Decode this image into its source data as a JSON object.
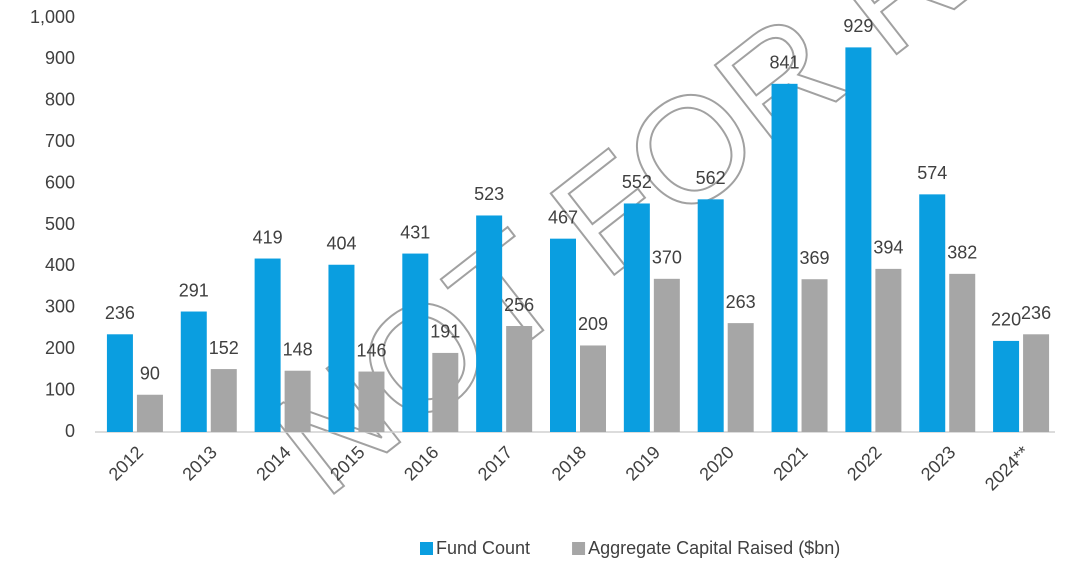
{
  "chart_data": {
    "type": "bar",
    "categories": [
      "2012",
      "2013",
      "2014",
      "2015",
      "2016",
      "2017",
      "2018",
      "2019",
      "2020",
      "2021",
      "2022",
      "2023",
      "2024**"
    ],
    "series": [
      {
        "name": "Fund Count",
        "color": "#0a9ee0",
        "values": [
          236,
          291,
          419,
          404,
          431,
          523,
          467,
          552,
          562,
          841,
          929,
          574,
          220
        ]
      },
      {
        "name": "Aggregate Capital Raised ($bn)",
        "color": "#a6a6a6",
        "values": [
          90,
          152,
          148,
          146,
          191,
          256,
          209,
          370,
          263,
          369,
          394,
          382,
          236
        ]
      }
    ],
    "ylim": [
      0,
      1000
    ],
    "yticks": [
      0,
      100,
      200,
      300,
      400,
      500,
      600,
      700,
      800,
      900,
      {
        "value": 1000,
        "label": "1,000"
      }
    ],
    "legend": "bottom",
    "watermark": "NOT FOR RED"
  }
}
